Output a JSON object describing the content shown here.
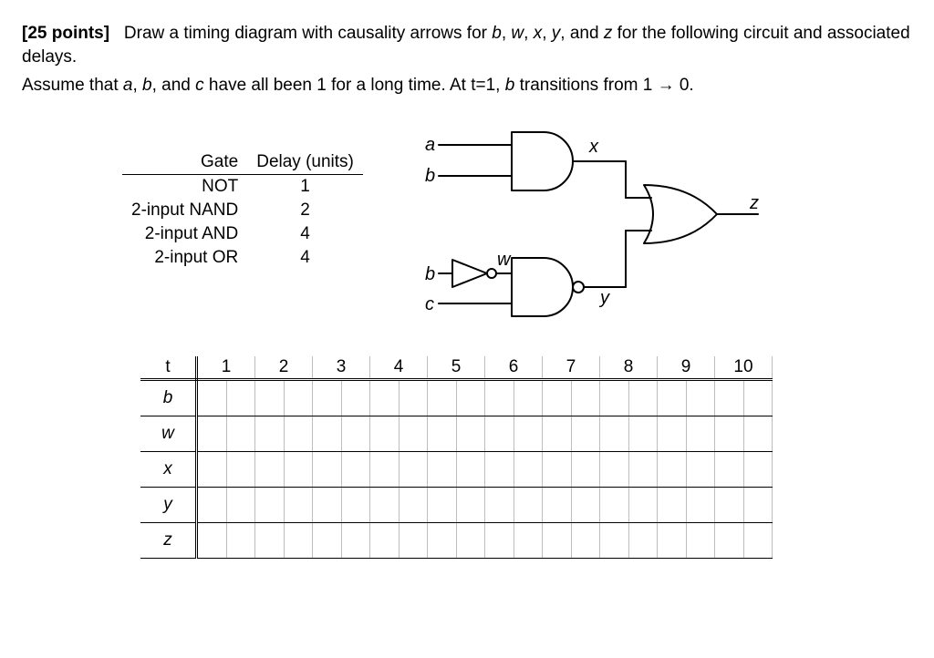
{
  "question": {
    "points_label": "[25 points]",
    "line1a": "Draw a timing diagram with causality arrows for ",
    "sigs1": [
      "b",
      "w",
      "x",
      "y",
      "z"
    ],
    "line1b": " for the following circuit and associated delays.",
    "line2a": "Assume that ",
    "sigs2": [
      "a",
      "b",
      "c"
    ],
    "line2b": " have all been 1 for a long time. At t=1, ",
    "line2c": " transitions from 1 → 0.",
    "transition_sig": "b"
  },
  "delay_table": {
    "headers": [
      "Gate",
      "Delay (units)"
    ],
    "rows": [
      {
        "gate": "NOT",
        "delay": "1"
      },
      {
        "gate": "2-input NAND",
        "delay": "2"
      },
      {
        "gate": "2-input AND",
        "delay": "4"
      },
      {
        "gate": "2-input OR",
        "delay": "4"
      }
    ]
  },
  "circuit": {
    "inputs": {
      "a": "a",
      "b": "b",
      "c": "c"
    },
    "wires": {
      "w": "w",
      "x": "x",
      "y": "y",
      "z": "z"
    },
    "colors": {
      "stroke": "#000000",
      "fill": "#ffffff"
    },
    "stroke_width": 2
  },
  "timing": {
    "time_label": "t",
    "times": [
      "1",
      "2",
      "3",
      "4",
      "5",
      "6",
      "7",
      "8",
      "9",
      "10"
    ],
    "signals": [
      "b",
      "w",
      "x",
      "y",
      "z"
    ],
    "cell_bg": "#ffffff",
    "subgrid_color": "#bdbdbd"
  }
}
